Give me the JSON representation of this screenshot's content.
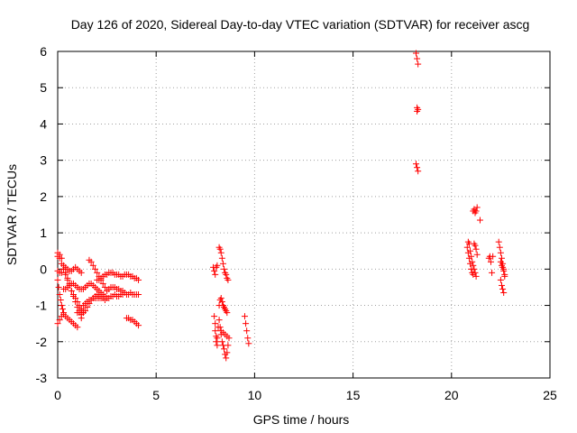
{
  "chart_data": {
    "type": "scatter",
    "title": "Day 126 of 2020, Sidereal Day-to-day VTEC variation (SDTVAR) for receiver ascg",
    "xlabel": "GPS time / hours",
    "ylabel": "SDTVAR / TECUs",
    "xlim": [
      0,
      25
    ],
    "ylim": [
      -3,
      6
    ],
    "xticks": [
      0,
      5,
      10,
      15,
      20,
      25
    ],
    "yticks": [
      -3,
      -2,
      -1,
      0,
      1,
      2,
      3,
      4,
      5,
      6
    ],
    "grid": true,
    "marker": "+",
    "color": "#ff0000",
    "segments": [
      {
        "x": [
          0.0,
          0.1,
          0.2,
          0.3,
          0.4,
          0.5,
          0.6,
          0.7,
          0.8,
          0.9,
          1.0,
          1.1,
          1.2
        ],
        "y": [
          0.35,
          0.4,
          0.3,
          0.1,
          -0.1,
          -0.25,
          -0.4,
          -0.6,
          -0.75,
          -0.9,
          -1.05,
          -1.2,
          -1.35
        ]
      },
      {
        "x": [
          0.0,
          0.1,
          0.2,
          0.3,
          0.4,
          0.5,
          0.6,
          0.7,
          0.8,
          0.9,
          1.0,
          1.1,
          1.2,
          1.3
        ],
        "y": [
          0.45,
          0.3,
          0.15,
          0.0,
          -0.15,
          -0.3,
          -0.45,
          -0.6,
          -0.7,
          -0.8,
          -0.9,
          -1.0,
          -1.1,
          -1.2
        ]
      },
      {
        "x": [
          0.0,
          0.05,
          0.1,
          0.15,
          0.2,
          0.25,
          0.3
        ],
        "y": [
          -0.3,
          -0.5,
          -0.7,
          -0.85,
          -1.0,
          -1.1,
          -1.2
        ]
      },
      {
        "x": [
          0.0,
          0.1,
          0.2,
          0.3,
          0.4,
          0.5,
          0.6,
          0.7,
          0.8,
          0.9,
          1.0,
          1.1,
          1.2
        ],
        "y": [
          -0.05,
          -0.1,
          -0.1,
          0.0,
          0.05,
          0.0,
          -0.05,
          -0.05,
          0.0,
          0.05,
          0.0,
          -0.05,
          -0.1
        ]
      },
      {
        "x": [
          0.0,
          0.1,
          0.2,
          0.3,
          0.4,
          0.5,
          0.6,
          0.7,
          0.8,
          0.9,
          1.0
        ],
        "y": [
          -1.5,
          -1.4,
          -1.3,
          -1.25,
          -1.3,
          -1.35,
          -1.4,
          -1.45,
          -1.5,
          -1.55,
          -1.6
        ]
      },
      {
        "x": [
          1.0,
          1.1,
          1.2,
          1.3,
          1.4,
          1.5,
          1.6,
          1.7,
          1.8,
          1.9,
          2.0,
          2.1,
          2.2
        ],
        "y": [
          -1.2,
          -1.15,
          -1.1,
          -1.0,
          -0.95,
          -0.9,
          -0.85,
          -0.85,
          -0.8,
          -0.8,
          -0.8,
          -0.8,
          -0.8
        ]
      },
      {
        "x": [
          0.3,
          0.4,
          0.5,
          0.6,
          0.7,
          0.8,
          0.9,
          1.0,
          1.1,
          1.2,
          1.3,
          1.4,
          1.5,
          1.6,
          1.7,
          1.8,
          1.9,
          2.0,
          2.1,
          2.2,
          2.3,
          2.4,
          2.5
        ],
        "y": [
          -0.55,
          -0.55,
          -0.5,
          -0.45,
          -0.4,
          -0.4,
          -0.45,
          -0.5,
          -0.55,
          -0.55,
          -0.55,
          -0.5,
          -0.45,
          -0.4,
          -0.4,
          -0.45,
          -0.5,
          -0.55,
          -0.6,
          -0.65,
          -0.7,
          -0.75,
          -0.8
        ]
      },
      {
        "x": [
          1.2,
          1.3,
          1.4,
          1.5,
          1.6,
          1.7,
          1.8,
          1.9,
          2.0
        ],
        "y": [
          -1.25,
          -1.2,
          -1.15,
          -1.05,
          -0.95,
          -0.85,
          -0.8,
          -0.75,
          -0.7
        ]
      },
      {
        "x": [
          1.6,
          1.7,
          1.8,
          1.9,
          2.0,
          2.1,
          2.2,
          2.3,
          2.4
        ],
        "y": [
          0.25,
          0.2,
          0.1,
          0.0,
          -0.1,
          -0.2,
          -0.3,
          -0.4,
          -0.5
        ]
      },
      {
        "x": [
          2.0,
          2.1,
          2.2,
          2.3,
          2.4,
          2.5,
          2.6,
          2.7,
          2.8,
          2.9,
          3.0,
          3.1,
          3.2,
          3.3,
          3.4,
          3.5,
          3.6,
          3.7,
          3.8,
          3.9,
          4.0,
          4.1
        ],
        "y": [
          -0.3,
          -0.3,
          -0.25,
          -0.2,
          -0.15,
          -0.15,
          -0.1,
          -0.1,
          -0.1,
          -0.15,
          -0.15,
          -0.15,
          -0.2,
          -0.2,
          -0.15,
          -0.15,
          -0.15,
          -0.2,
          -0.2,
          -0.25,
          -0.25,
          -0.3
        ]
      },
      {
        "x": [
          2.1,
          2.2,
          2.3,
          2.4,
          2.5,
          2.6,
          2.7,
          2.8,
          2.9,
          3.0,
          3.1,
          3.2,
          3.3,
          3.4,
          3.5,
          3.6,
          3.7,
          3.8,
          3.9,
          4.0,
          4.1
        ],
        "y": [
          -0.75,
          -0.75,
          -0.8,
          -0.85,
          -0.8,
          -0.8,
          -0.75,
          -0.75,
          -0.7,
          -0.75,
          -0.75,
          -0.7,
          -0.7,
          -0.65,
          -0.7,
          -0.7,
          -0.65,
          -0.7,
          -0.7,
          -0.7,
          -0.7
        ]
      },
      {
        "x": [
          2.5,
          2.6,
          2.7,
          2.8,
          2.9,
          3.0,
          3.1,
          3.2,
          3.3
        ],
        "y": [
          -0.6,
          -0.55,
          -0.5,
          -0.5,
          -0.5,
          -0.55,
          -0.55,
          -0.6,
          -0.6
        ]
      },
      {
        "x": [
          3.5,
          3.6,
          3.7,
          3.8,
          3.9,
          4.0,
          4.1
        ],
        "y": [
          -1.35,
          -1.35,
          -1.4,
          -1.4,
          -1.45,
          -1.5,
          -1.55
        ]
      },
      {
        "x": [
          7.9,
          7.95,
          8.0,
          8.05,
          8.1
        ],
        "y": [
          0.05,
          -0.05,
          -0.15,
          0.05,
          0.1
        ]
      },
      {
        "x": [
          7.95,
          8.0,
          8.0,
          8.05,
          8.05,
          8.1,
          8.1,
          8.15
        ],
        "y": [
          -1.3,
          -1.5,
          -1.7,
          -1.85,
          -2.0,
          -2.1,
          -1.9,
          -1.6
        ]
      },
      {
        "x": [
          8.2,
          8.25,
          8.3,
          8.35,
          8.4,
          8.45,
          8.5,
          8.55,
          8.6,
          8.65
        ],
        "y": [
          0.6,
          0.55,
          0.45,
          0.3,
          0.15,
          0.0,
          -0.1,
          -0.15,
          -0.25,
          -0.3
        ]
      },
      {
        "x": [
          8.2,
          8.25,
          8.3,
          8.35,
          8.4,
          8.45,
          8.5,
          8.55,
          8.6
        ],
        "y": [
          -1.0,
          -0.85,
          -0.8,
          -0.9,
          -1.0,
          -1.05,
          -1.1,
          -1.15,
          -1.2
        ]
      },
      {
        "x": [
          8.2,
          8.25,
          8.3,
          8.35,
          8.4,
          8.45,
          8.5,
          8.55,
          8.6,
          8.65
        ],
        "y": [
          -1.4,
          -1.6,
          -1.8,
          -2.0,
          -2.1,
          -2.2,
          -2.35,
          -2.45,
          -2.3,
          -2.1
        ]
      },
      {
        "x": [
          8.3,
          8.4,
          8.5,
          8.6,
          8.7
        ],
        "y": [
          -1.7,
          -1.75,
          -1.8,
          -1.85,
          -1.9
        ]
      },
      {
        "x": [
          9.5,
          9.55,
          9.6,
          9.65,
          9.7
        ],
        "y": [
          -1.3,
          -1.5,
          -1.7,
          -1.9,
          -2.05
        ]
      },
      {
        "x": [
          18.2,
          18.25,
          18.3,
          18.25
        ],
        "y": [
          5.95,
          5.8,
          5.65,
          4.45
        ]
      },
      {
        "x": [
          18.25,
          18.3,
          18.2,
          18.25,
          18.3
        ],
        "y": [
          4.35,
          4.4,
          2.9,
          2.8,
          2.7
        ]
      },
      {
        "x": [
          20.8,
          20.85,
          20.9,
          20.95,
          21.0,
          21.05,
          21.1,
          21.15,
          21.2,
          21.25,
          21.3
        ],
        "y": [
          0.6,
          0.45,
          0.3,
          0.15,
          0.0,
          -0.1,
          -0.15,
          0.7,
          0.65,
          0.55,
          0.4
        ]
      },
      {
        "x": [
          20.85,
          20.9,
          20.95,
          21.0,
          21.05,
          21.1,
          21.15,
          21.2,
          21.25
        ],
        "y": [
          0.75,
          0.7,
          0.5,
          0.35,
          0.2,
          0.1,
          0.0,
          -0.1,
          -0.2
        ]
      },
      {
        "x": [
          21.1,
          21.15,
          21.2,
          21.25,
          21.3,
          21.45
        ],
        "y": [
          1.6,
          1.65,
          1.55,
          1.6,
          1.7,
          1.35
        ]
      },
      {
        "x": [
          21.9,
          21.95,
          22.0,
          22.05,
          22.1
        ],
        "y": [
          0.3,
          0.35,
          0.2,
          -0.1,
          0.35
        ]
      },
      {
        "x": [
          22.4,
          22.45,
          22.5,
          22.55,
          22.6,
          22.65,
          22.7,
          22.5,
          22.55,
          22.6,
          22.65
        ],
        "y": [
          0.75,
          0.6,
          0.45,
          0.3,
          0.15,
          0.0,
          -0.15,
          -0.3,
          -0.45,
          -0.55,
          -0.65
        ]
      },
      {
        "x": [
          22.5,
          22.55,
          22.6,
          22.65,
          22.7
        ],
        "y": [
          0.2,
          0.1,
          0.05,
          -0.05,
          -0.2
        ]
      }
    ]
  }
}
